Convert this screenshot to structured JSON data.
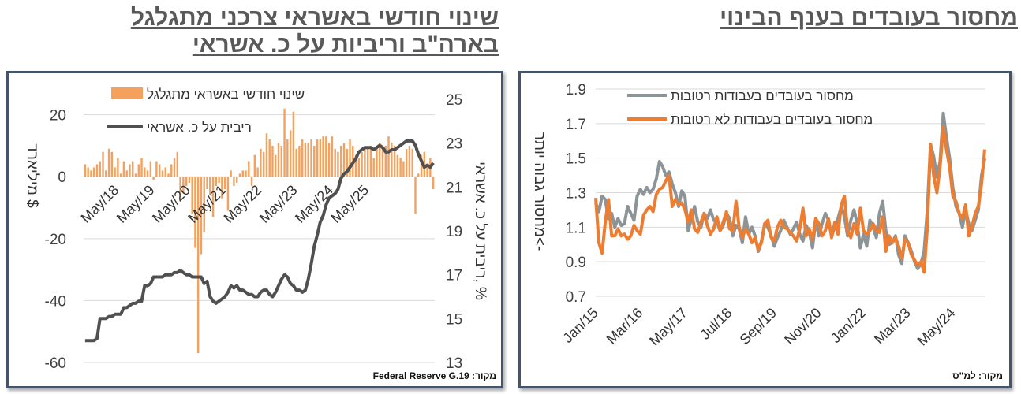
{
  "titles": {
    "right": "מחסור בעובדים בענף הבינוי",
    "left_line1": "שינוי חודשי באשראי צרכני מתגלגל",
    "left_line2": "בארה\"ב וריביות על כ. אשראי"
  },
  "sources": {
    "left": "מקור: Federal Reserve G.19",
    "right": "מקור: למ\"ס"
  },
  "colors": {
    "orange": "#f4a15d",
    "darkline": "#505050",
    "orange_line": "#ed7d31",
    "gray_line": "#8c9497",
    "grid": "#d9d9d9"
  },
  "chart_data": [
    {
      "type": "bar+line",
      "legend": [
        "שינוי חודשי באשראי מתגלגל",
        "ריבית על כ. אשראי"
      ],
      "ylabel_left": "מיליארד $",
      "ylabel_right": "ריבית על כ. אשראי, %",
      "ylim_left": [
        -60,
        25
      ],
      "ylim_right": [
        13,
        25
      ],
      "yticks_left": [
        "20",
        "0",
        "-20",
        "-40",
        "-60"
      ],
      "yticks_right": [
        "25",
        "23",
        "21",
        "19",
        "17",
        "15",
        "13"
      ],
      "xticks": [
        "May/18",
        "May/19",
        "May/20",
        "May/21",
        "May/22",
        "May/23",
        "May/24",
        "May/25"
      ],
      "x_start": "2017-07",
      "bars": [
        4,
        3,
        2,
        3,
        4,
        5,
        8,
        2,
        9,
        8,
        3,
        6,
        1,
        5,
        2,
        4,
        5,
        1,
        4,
        6,
        3,
        2,
        5,
        -1,
        5,
        4,
        2,
        3,
        1,
        4,
        6,
        8,
        -8,
        -5,
        -3,
        -2,
        -12,
        -23,
        -57,
        -25,
        -18,
        -4,
        -6,
        -13,
        -3,
        -2,
        -7,
        -4,
        -11,
        2,
        -3,
        -2,
        1,
        2,
        2,
        5,
        -3,
        7,
        3,
        9,
        8,
        14,
        12,
        10,
        7,
        11,
        10,
        22,
        12,
        15,
        21,
        9,
        10,
        12,
        11,
        11,
        12,
        10,
        12,
        12,
        13,
        13,
        11,
        13,
        9,
        8,
        10,
        11,
        9,
        12,
        10,
        7,
        6,
        8,
        9,
        9,
        10,
        6,
        10,
        11,
        9,
        10,
        13,
        11,
        10,
        7,
        6,
        5,
        9,
        10,
        9,
        -12,
        1,
        7,
        8,
        3,
        6,
        -4
      ],
      "line": [
        14.0,
        14.0,
        14.0,
        14.0,
        14.1,
        15.0,
        15.0,
        15.0,
        15.1,
        15.1,
        15.2,
        15.2,
        15.2,
        15.5,
        15.5,
        15.6,
        15.7,
        15.7,
        15.8,
        15.8,
        16.5,
        16.5,
        16.6,
        16.9,
        16.9,
        16.9,
        16.9,
        17.0,
        17.0,
        17.0,
        17.1,
        17.1,
        17.2,
        17.1,
        17.0,
        17.0,
        16.9,
        16.9,
        16.9,
        16.9,
        16.6,
        16.7,
        16.0,
        15.8,
        15.7,
        15.8,
        15.9,
        16.0,
        16.2,
        16.5,
        16.4,
        16.5,
        16.3,
        16.3,
        16.2,
        16.1,
        16.1,
        16.0,
        16.0,
        16.2,
        16.3,
        16.3,
        16.1,
        16.0,
        16.2,
        16.5,
        16.8,
        17.0,
        16.9,
        16.6,
        16.5,
        16.3,
        16.3,
        16.2,
        16.3,
        16.8,
        17.5,
        18.3,
        18.8,
        19.4,
        19.7,
        20.2,
        20.5,
        20.6,
        20.7,
        20.9,
        21.4,
        21.6,
        21.7,
        21.9,
        22.1,
        22.3,
        22.6,
        22.7,
        22.8,
        22.8,
        22.8,
        22.7,
        22.8,
        22.9,
        22.8,
        22.6,
        22.6,
        22.7,
        22.7,
        22.8,
        22.9,
        23.0,
        23.1,
        23.1,
        23.1,
        22.9,
        22.5,
        22.2,
        21.9,
        22.0,
        21.9,
        22.1
      ]
    },
    {
      "type": "line",
      "legend": [
        "מחסור בעובדים בעבודות  רטובות",
        "מחסור בעובדים בעבודות לא רטובות"
      ],
      "ylabel": "מחסור גבוה יותר<-",
      "ylim": [
        0.7,
        1.9
      ],
      "yticks": [
        "1.9",
        "1.7",
        "1.5",
        "1.3",
        "1.1",
        "0.9",
        "0.7"
      ],
      "xticks": [
        "Jan/15",
        "Mar/16",
        "May/17",
        "Jul/18",
        "Sep/19",
        "Nov/20",
        "Jan/22",
        "Mar/23",
        "May/24"
      ],
      "x_start": "2015-01",
      "series": [
        {
          "name": "מחסור בעובדים בעבודות  רטובות",
          "values": [
            1.24,
            1.19,
            1.28,
            1.26,
            1.15,
            1.18,
            1.1,
            1.15,
            1.11,
            1.12,
            1.22,
            1.18,
            1.14,
            1.28,
            1.32,
            1.29,
            1.33,
            1.3,
            1.32,
            1.38,
            1.48,
            1.45,
            1.4,
            1.42,
            1.35,
            1.3,
            1.22,
            1.31,
            1.28,
            1.08,
            1.15,
            1.22,
            1.13,
            1.1,
            1.18,
            1.15,
            1.2,
            1.14,
            1.13,
            1.08,
            1.11,
            1.18,
            1.15,
            1.05,
            1.11,
            1.09,
            1.01,
            1.16,
            1.06,
            1.1,
            1.05,
            0.96,
            1.02,
            1.12,
            1.1,
            1.05,
            0.99,
            1.04,
            1.08,
            1.14,
            1.1,
            1.06,
            1.09,
            1.13,
            1.06,
            1.02,
            1.11,
            1.07,
            0.98,
            1.14,
            1.05,
            1.12,
            1.18,
            1.14,
            1.05,
            1.1,
            1.15,
            1.22,
            1.16,
            1.05,
            1.14,
            1.2,
            1.12,
            0.98,
            1.06,
            0.99,
            1.14,
            1.1,
            1.04,
            1.18,
            1.25,
            1.08,
            1.0,
            1.01,
            1.05,
            0.94,
            0.89,
            1.05,
            1.01,
            0.96,
            0.9,
            0.86,
            0.89,
            0.96,
            1.2,
            1.58,
            1.51,
            1.39,
            1.48,
            1.76,
            1.62,
            1.5,
            1.33,
            1.22,
            1.18,
            1.1,
            1.2,
            1.12,
            1.08,
            1.14,
            1.2,
            1.4,
            1.5
          ]
        },
        {
          "name": "מחסור בעובדים בעבודות לא רטובות",
          "values": [
            1.27,
            1.01,
            0.95,
            1.13,
            1.26,
            1.05,
            1.05,
            1.09,
            1.05,
            1.06,
            1.03,
            1.05,
            1.11,
            1.08,
            1.06,
            1.17,
            1.2,
            1.22,
            1.19,
            1.29,
            1.32,
            1.33,
            1.37,
            1.4,
            1.22,
            1.26,
            1.23,
            1.24,
            1.2,
            1.13,
            1.2,
            1.09,
            1.07,
            1.13,
            1.18,
            1.11,
            1.06,
            1.09,
            1.16,
            1.08,
            1.13,
            1.19,
            1.09,
            1.08,
            1.25,
            1.1,
            1.04,
            1.09,
            1.06,
            1.01,
            1.04,
            0.97,
            1.01,
            1.12,
            1.14,
            1.04,
            1.02,
            1.1,
            1.14,
            1.1,
            1.09,
            1.07,
            1.05,
            1.02,
            1.09,
            1.21,
            1.05,
            1.09,
            1.03,
            1.15,
            1.12,
            1.05,
            1.08,
            1.15,
            1.04,
            1.13,
            1.06,
            1.23,
            1.28,
            1.08,
            1.04,
            1.12,
            1.06,
            1.21,
            1.08,
            1.06,
            1.08,
            1.12,
            1.08,
            1.07,
            1.16,
            0.96,
            1.05,
            1.01,
            1.04,
            0.99,
            0.92,
            1.03,
            1.01,
            0.94,
            0.91,
            0.88,
            0.9,
            0.84,
            1.1,
            1.58,
            1.4,
            1.3,
            1.45,
            1.68,
            1.55,
            1.45,
            1.28,
            1.25,
            1.18,
            1.15,
            1.23,
            1.05,
            1.1,
            1.18,
            1.22,
            1.35,
            1.55
          ]
        }
      ]
    }
  ]
}
